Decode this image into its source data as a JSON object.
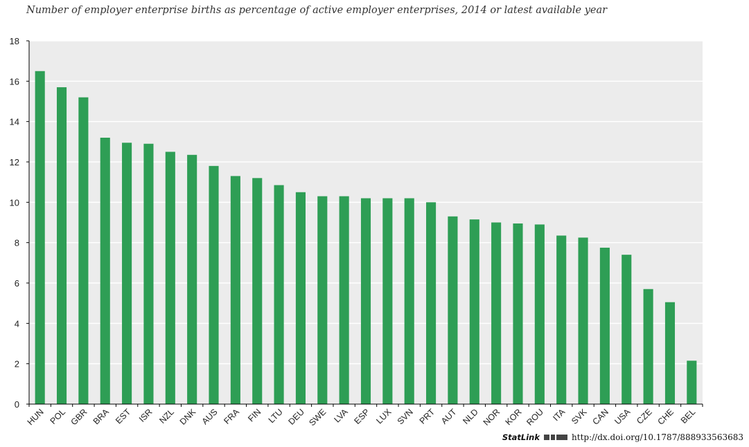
{
  "chart_data": {
    "type": "bar",
    "title": "Number of employer enterprise births as percentage of active employer enterprises, 2014 or latest available year",
    "xlabel": "",
    "ylabel": "",
    "ylim": [
      0,
      18
    ],
    "yticks": [
      "0",
      "2",
      "4",
      "6",
      "8",
      "10",
      "12",
      "14",
      "16",
      "18"
    ],
    "grid": true,
    "color": "#2e9e55",
    "categories": [
      "HUN",
      "POL",
      "GBR",
      "BRA",
      "EST",
      "ISR",
      "NZL",
      "DNK",
      "AUS",
      "FRA",
      "FIN",
      "LTU",
      "DEU",
      "SWE",
      "LVA",
      "ESP",
      "LUX",
      "SVN",
      "PRT",
      "AUT",
      "NLD",
      "NOR",
      "KOR",
      "ROU",
      "ITA",
      "SVK",
      "CAN",
      "USA",
      "CZE",
      "CHE",
      "BEL"
    ],
    "values": [
      16.5,
      15.7,
      15.2,
      13.2,
      12.95,
      12.9,
      12.5,
      12.35,
      11.8,
      11.3,
      11.2,
      10.85,
      10.5,
      10.3,
      10.3,
      10.2,
      10.2,
      10.2,
      10.0,
      9.3,
      9.15,
      9.0,
      8.95,
      8.9,
      8.35,
      8.25,
      7.75,
      7.4,
      5.7,
      5.05,
      2.15
    ]
  },
  "statlink": {
    "label": "StatLink",
    "icon": "statlink-logo-icon",
    "url": "http://dx.doi.org/10.1787/888933563683"
  }
}
